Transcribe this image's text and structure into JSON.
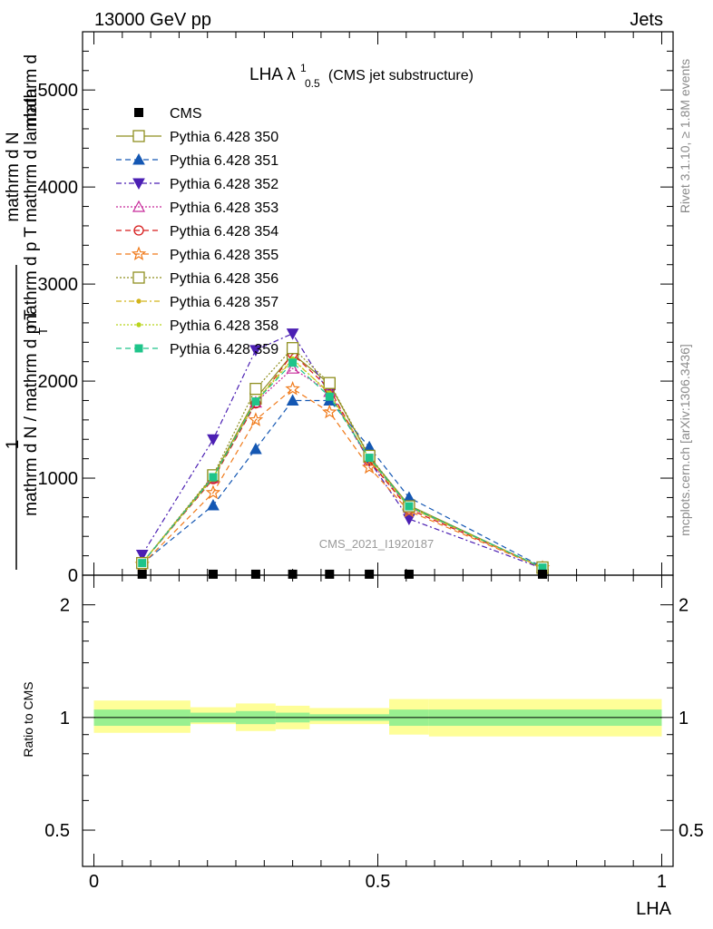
{
  "header": {
    "left": "13000 GeV pp",
    "right": "Jets"
  },
  "side_labels": {
    "rivet": "Rivet 3.1.10, ≥ 1.8M events",
    "mcplots": "mcplots.cern.ch [arXiv:1306.3436]"
  },
  "chart_data": [
    {
      "type": "line",
      "panel": "main",
      "title": {
        "main": "LHA λ",
        "sup": "1",
        "sub": "0.5",
        "suffix": "(CMS jet substructure)"
      },
      "watermark": "CMS_2021_I1920187",
      "ylabel": {
        "one": "1",
        "numerator": "mathrm d N",
        "denominator": "mathrm d N / mathrm d p T",
        "overlay_top": "mathrm d",
        "overlay_bottom": "mathrm d p T mathrm d lambda",
        "overlay_sub": "T"
      },
      "ylim": [
        0,
        5600
      ],
      "yticks": [
        0,
        1000,
        2000,
        3000,
        4000,
        5000
      ],
      "ytick_labels": [
        "0",
        "1000",
        "2000",
        "3000",
        "4000",
        "5000"
      ],
      "xlim": [
        -0.02,
        1.02
      ],
      "legend_position": "top-left",
      "cms": {
        "name": "CMS",
        "x": [
          0.085,
          0.21,
          0.285,
          0.35,
          0.415,
          0.485,
          0.555,
          0.79
        ],
        "y": [
          10,
          10,
          10,
          10,
          10,
          10,
          10,
          10
        ]
      },
      "x": [
        0.085,
        0.21,
        0.285,
        0.35,
        0.415,
        0.485,
        0.555,
        0.79
      ],
      "series": [
        {
          "name": "Pythia 6.428 350",
          "color": "#8f8f1f",
          "marker": "open-square",
          "dash": "",
          "values": [
            125,
            1020,
            1820,
            2280,
            1970,
            1220,
            720,
            75
          ]
        },
        {
          "name": "Pythia 6.428 351",
          "color": "#1457b3",
          "marker": "filled-triangle-up",
          "dash": "6,4",
          "values": [
            120,
            720,
            1300,
            1800,
            1800,
            1320,
            800,
            85
          ]
        },
        {
          "name": "Pythia 6.428 352",
          "color": "#4b1fb3",
          "marker": "filled-triangle-down",
          "dash": "6,3,2,3",
          "values": [
            210,
            1400,
            2320,
            2490,
            1870,
            1180,
            580,
            70
          ]
        },
        {
          "name": "Pythia 6.428 353",
          "color": "#c72a9a",
          "marker": "open-triangle-up",
          "dash": "2,2",
          "values": [
            125,
            1000,
            1780,
            2130,
            1890,
            1180,
            700,
            78
          ]
        },
        {
          "name": "Pythia 6.428 354",
          "color": "#d61a1a",
          "marker": "open-circle",
          "dash": "6,4",
          "values": [
            125,
            990,
            1770,
            2280,
            1920,
            1180,
            680,
            80
          ]
        },
        {
          "name": "Pythia 6.428 355",
          "color": "#f07a1a",
          "marker": "open-star",
          "dash": "6,4",
          "values": [
            110,
            850,
            1600,
            1920,
            1680,
            1110,
            660,
            75
          ]
        },
        {
          "name": "Pythia 6.428 356",
          "color": "#8f8f1f",
          "marker": "open-square",
          "dash": "2,2",
          "values": [
            125,
            1030,
            1920,
            2340,
            1980,
            1230,
            710,
            80
          ]
        },
        {
          "name": "Pythia 6.428 357",
          "color": "#d2b31a",
          "marker": "filled-small",
          "dash": "6,3,2,3",
          "values": [
            125,
            1010,
            1790,
            2220,
            1880,
            1200,
            700,
            78
          ]
        },
        {
          "name": "Pythia 6.428 358",
          "color": "#b8d41a",
          "marker": "filled-small",
          "dash": "2,2",
          "values": [
            125,
            1000,
            1800,
            2230,
            1870,
            1200,
            700,
            78
          ]
        },
        {
          "name": "Pythia 6.428 359",
          "color": "#1fc48a",
          "marker": "filled-square",
          "dash": "6,4",
          "values": [
            125,
            1010,
            1790,
            2190,
            1840,
            1210,
            710,
            78
          ]
        }
      ]
    },
    {
      "type": "area",
      "panel": "ratio",
      "ylabel": "Ratio to CMS",
      "xlabel": "LHA",
      "yscale": "log",
      "ylim": [
        0.4,
        2.4
      ],
      "yticks": [
        0.5,
        1,
        2
      ],
      "ytick_labels": [
        "0.5",
        "1",
        "2"
      ],
      "xlim": [
        -0.02,
        1.02
      ],
      "xticks": [
        0,
        0.5,
        1
      ],
      "xtick_labels": [
        "0",
        "0.5",
        "1"
      ],
      "reference_line": 1,
      "bins": [
        {
          "x0": 0.0,
          "x1": 0.17,
          "stat": [
            0.95,
            1.05
          ],
          "total": [
            0.91,
            1.11
          ]
        },
        {
          "x0": 0.17,
          "x1": 0.25,
          "stat": [
            0.97,
            1.03
          ],
          "total": [
            0.96,
            1.065
          ]
        },
        {
          "x0": 0.25,
          "x1": 0.32,
          "stat": [
            0.96,
            1.04
          ],
          "total": [
            0.92,
            1.09
          ]
        },
        {
          "x0": 0.32,
          "x1": 0.38,
          "stat": [
            0.97,
            1.03
          ],
          "total": [
            0.93,
            1.075
          ]
        },
        {
          "x0": 0.38,
          "x1": 0.52,
          "stat": [
            0.98,
            1.02
          ],
          "total": [
            0.96,
            1.06
          ]
        },
        {
          "x0": 0.52,
          "x1": 0.59,
          "stat": [
            0.95,
            1.05
          ],
          "total": [
            0.9,
            1.12
          ]
        },
        {
          "x0": 0.59,
          "x1": 1.0,
          "stat": [
            0.95,
            1.05
          ],
          "total": [
            0.89,
            1.12
          ]
        }
      ],
      "colors": {
        "stat": "#99f090",
        "total": "#fefe98",
        "reference_line": "#000000"
      }
    }
  ]
}
